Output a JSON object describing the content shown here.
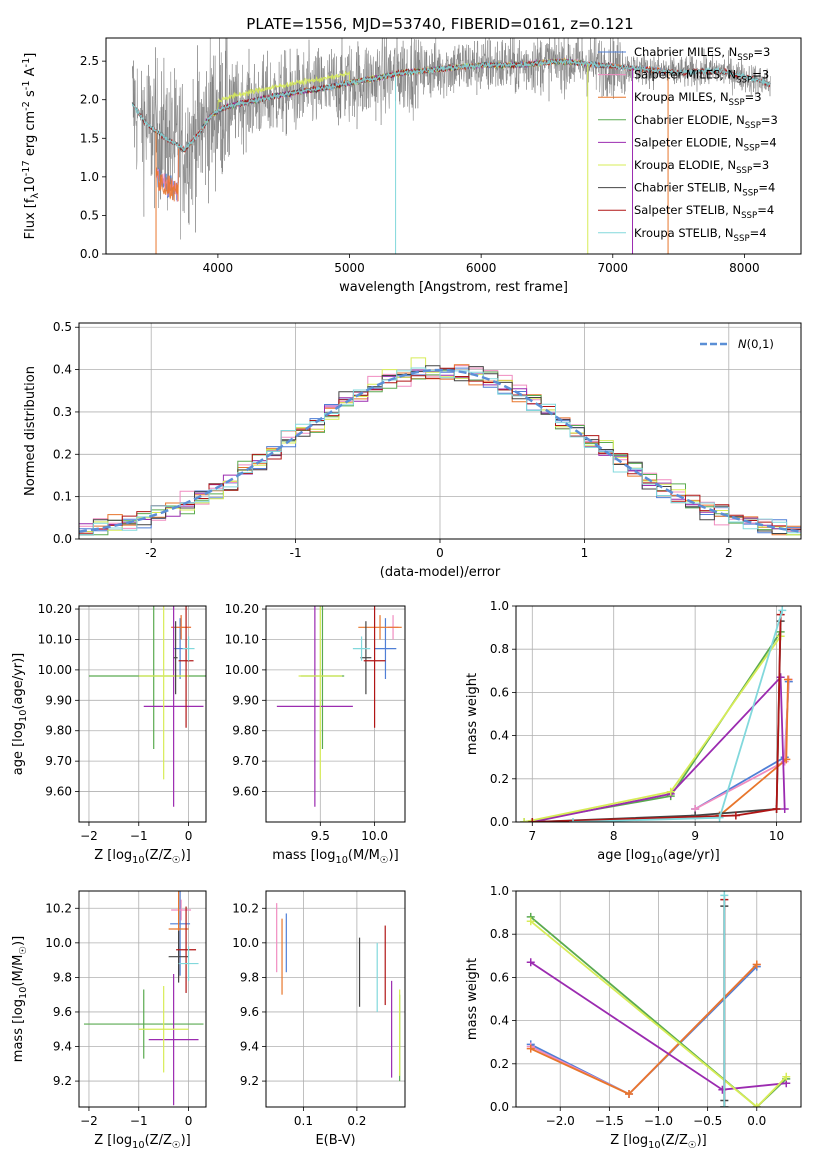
{
  "figure": {
    "title": "PLATE=1556, MJD=53740, FIBERID=0161, z=0.121"
  },
  "colors": {
    "chabrier_miles": "#4f7fd6",
    "salpeter_miles": "#f08cc0",
    "kroupa_miles": "#e8762c",
    "chabrier_elodie": "#5aaa50",
    "salpeter_elodie": "#9b2bb0",
    "kroupa_elodie": "#d7ec57",
    "chabrier_stelib": "#444444",
    "salpeter_stelib": "#b01515",
    "kroupa_stelib": "#82d8dc",
    "data_grey": "#808080",
    "normal_dashed": "#5b8fd6"
  },
  "chart_data": [
    {
      "id": "spectrum",
      "type": "line",
      "xlabel": "wavelength [Angstrom, rest frame]",
      "ylabel": "Flux [f$_\\lambda$10$^{-17}$ erg cm$^{-2}$ s$^{-1}$ A$^{-1}$]",
      "xlim": [
        3150,
        8430
      ],
      "ylim": [
        0,
        2.8
      ],
      "xticks": [
        4000,
        5000,
        6000,
        7000,
        8000
      ],
      "yticks": [
        0.0,
        0.5,
        1.0,
        1.5,
        2.0,
        2.5
      ],
      "grid": false,
      "legend_position": "top-right",
      "legend": [
        {
          "key": "chabrier_miles",
          "label": "Chabrier MILES, N$_{SSP}$=3"
        },
        {
          "key": "salpeter_miles",
          "label": "Salpeter MILES, N$_{SSP}$=3"
        },
        {
          "key": "kroupa_miles",
          "label": "Kroupa MILES, N$_{SSP}$=3"
        },
        {
          "key": "chabrier_elodie",
          "label": "Chabrier ELODIE, N$_{SSP}$=3"
        },
        {
          "key": "salpeter_elodie",
          "label": "Salpeter ELODIE, N$_{SSP}$=4"
        },
        {
          "key": "kroupa_elodie",
          "label": "Kroupa ELODIE, N$_{SSP}$=3"
        },
        {
          "key": "chabrier_stelib",
          "label": "Chabrier STELIB, N$_{SSP}$=4"
        },
        {
          "key": "salpeter_stelib",
          "label": "Salpeter STELIB, N$_{SSP}$=4"
        },
        {
          "key": "kroupa_stelib",
          "label": "Kroupa STELIB, N$_{SSP}$=4"
        }
      ],
      "continuum": {
        "x": [
          3350,
          3450,
          3600,
          3750,
          3850,
          3950,
          4050,
          4300,
          4600,
          4800,
          5000,
          5200,
          5400,
          5700,
          6000,
          6300,
          6600,
          6900,
          7200,
          7500,
          7800,
          8000,
          8100,
          8200
        ],
        "y": [
          1.95,
          1.7,
          1.5,
          1.35,
          1.55,
          1.8,
          1.9,
          2.0,
          2.1,
          2.15,
          2.22,
          2.28,
          2.35,
          2.4,
          2.45,
          2.45,
          2.5,
          2.45,
          2.4,
          2.35,
          2.38,
          2.3,
          2.25,
          2.2
        ]
      },
      "model_start": {
        "x": 3350,
        "y": 1.95
      },
      "model_end": {
        "x": 8200,
        "y": 2.22
      }
    },
    {
      "id": "residuals",
      "type": "histogram",
      "xlabel": "(data-model)/error",
      "ylabel": "Normed distribution",
      "xlim": [
        -2.5,
        2.5
      ],
      "ylim": [
        0,
        0.51
      ],
      "xticks": [
        -2,
        -1,
        0,
        1,
        2
      ],
      "yticks": [
        0.0,
        0.1,
        0.2,
        0.3,
        0.4,
        0.5
      ],
      "grid": true,
      "legend_position": "top-right",
      "legend": [
        {
          "key": "normal_dashed",
          "label": "$\\mathcal{N}(0,1)$"
        }
      ],
      "bin_width": 0.1
    },
    {
      "id": "age_vs_Z",
      "type": "errorbar",
      "xlabel": "Z [log$_{10}$(Z/Z$_\\odot$)]",
      "ylabel": "age  [log$_{10}$(age/yr)]",
      "xlim": [
        -2.2,
        0.35
      ],
      "ylim": [
        9.5,
        10.21
      ],
      "xticks": [
        -2,
        -1,
        0
      ],
      "yticks": [
        9.6,
        9.7,
        9.8,
        9.9,
        10.0,
        10.1,
        10.2
      ],
      "grid": true,
      "points": [
        {
          "key": "chabrier_miles",
          "x": -0.17,
          "xerr": 0.12,
          "y": 10.07,
          "yerr": 0.1
        },
        {
          "key": "salpeter_miles",
          "x": -0.15,
          "xerr": 0.2,
          "y": 10.14,
          "yerr": 0.04
        },
        {
          "key": "kroupa_miles",
          "x": -0.15,
          "xerr": 0.2,
          "y": 10.14,
          "yerr": 0.04
        },
        {
          "key": "chabrier_elodie",
          "x": -0.7,
          "xerr": 1.3,
          "y": 9.98,
          "yerr": 0.24
        },
        {
          "key": "salpeter_elodie",
          "x": -0.3,
          "xerr": 0.6,
          "y": 9.88,
          "yerr": 0.33
        },
        {
          "key": "kroupa_elodie",
          "x": -0.5,
          "xerr": 0.5,
          "y": 9.98,
          "yerr": 0.34
        },
        {
          "key": "chabrier_stelib",
          "x": -0.26,
          "xerr": 0.04,
          "y": 10.04,
          "yerr": 0.12
        },
        {
          "key": "salpeter_stelib",
          "x": -0.05,
          "xerr": 0.15,
          "y": 10.03,
          "yerr": 0.22
        },
        {
          "key": "kroupa_stelib",
          "x": 0.0,
          "xerr": 0.12,
          "y": 10.07,
          "yerr": 0.04
        }
      ]
    },
    {
      "id": "age_vs_mass",
      "type": "errorbar",
      "xlabel": "mass [log$_{10}$(M/M$_\\odot$)]",
      "ylabel": "",
      "xlim": [
        9.0,
        10.28
      ],
      "ylim": [
        9.5,
        10.21
      ],
      "xticks": [
        9.5,
        10.0
      ],
      "yticks": [
        9.6,
        9.7,
        9.8,
        9.9,
        10.0,
        10.1,
        10.2
      ],
      "grid": true,
      "points": [
        {
          "key": "chabrier_miles",
          "x": 10.1,
          "xerr": 0.1,
          "y": 10.07,
          "yerr": 0.1
        },
        {
          "key": "salpeter_miles",
          "x": 10.17,
          "xerr": 0.05,
          "y": 10.14,
          "yerr": 0.04
        },
        {
          "key": "kroupa_miles",
          "x": 10.05,
          "xerr": 0.2,
          "y": 10.14,
          "yerr": 0.04
        },
        {
          "key": "chabrier_elodie",
          "x": 9.52,
          "xerr": 0.2,
          "y": 9.98,
          "yerr": 0.24
        },
        {
          "key": "salpeter_elodie",
          "x": 9.45,
          "xerr": 0.35,
          "y": 9.88,
          "yerr": 0.33
        },
        {
          "key": "kroupa_elodie",
          "x": 9.5,
          "xerr": 0.2,
          "y": 9.98,
          "yerr": 0.34
        },
        {
          "key": "chabrier_stelib",
          "x": 9.92,
          "xerr": 0.05,
          "y": 10.04,
          "yerr": 0.12
        },
        {
          "key": "salpeter_stelib",
          "x": 10.0,
          "xerr": 0.1,
          "y": 10.03,
          "yerr": 0.22
        },
        {
          "key": "kroupa_stelib",
          "x": 9.88,
          "xerr": 0.08,
          "y": 10.07,
          "yerr": 0.04
        }
      ]
    },
    {
      "id": "weight_vs_age",
      "type": "line",
      "xlabel": "age  [log$_{10}$(age/yr)]",
      "ylabel": "mass weight",
      "xlim": [
        6.8,
        10.3
      ],
      "ylim": [
        0,
        1.0
      ],
      "xticks": [
        7,
        8,
        9,
        10
      ],
      "yticks": [
        0.0,
        0.2,
        0.4,
        0.6,
        0.8,
        1.0
      ],
      "grid": true,
      "series": [
        {
          "key": "chabrier_miles",
          "x": [
            9.0,
            10.1,
            10.15
          ],
          "y": [
            0.06,
            0.3,
            0.65
          ]
        },
        {
          "key": "salpeter_miles",
          "x": [
            9.0,
            10.1,
            10.15
          ],
          "y": [
            0.06,
            0.28,
            0.66
          ]
        },
        {
          "key": "kroupa_miles",
          "x": [
            9.3,
            10.12,
            10.14
          ],
          "y": [
            0.03,
            0.29,
            0.66
          ]
        },
        {
          "key": "chabrier_elodie",
          "x": [
            6.9,
            8.7,
            10.05
          ],
          "y": [
            0.0,
            0.12,
            0.88
          ]
        },
        {
          "key": "salpeter_elodie",
          "x": [
            7.0,
            8.7,
            10.05,
            10.1
          ],
          "y": [
            0.0,
            0.13,
            0.67,
            0.06
          ]
        },
        {
          "key": "kroupa_elodie",
          "x": [
            6.9,
            8.7,
            10.05
          ],
          "y": [
            0.0,
            0.14,
            0.86
          ]
        },
        {
          "key": "chabrier_stelib",
          "x": [
            7.0,
            9.0,
            10.0,
            10.05
          ],
          "y": [
            0.0,
            0.03,
            0.06,
            0.93
          ]
        },
        {
          "key": "salpeter_stelib",
          "x": [
            7.0,
            9.5,
            10.0,
            10.05
          ],
          "y": [
            0.0,
            0.03,
            0.06,
            0.96
          ]
        },
        {
          "key": "kroupa_stelib",
          "x": [
            7.5,
            9.3,
            10.07
          ],
          "y": [
            0.0,
            0.02,
            0.98
          ]
        }
      ]
    },
    {
      "id": "mass_vs_Z",
      "type": "errorbar",
      "xlabel": "Z [log$_{10}$(Z/Z$_\\odot$)]",
      "ylabel": "mass [log$_{10}$(M/M$_\\odot$)]",
      "xlim": [
        -2.2,
        0.35
      ],
      "ylim": [
        9.05,
        10.3
      ],
      "xticks": [
        -2,
        -1,
        0
      ],
      "yticks": [
        9.2,
        9.4,
        9.6,
        9.8,
        10.0,
        10.2
      ],
      "grid": true,
      "points": [
        {
          "key": "chabrier_miles",
          "x": -0.17,
          "xerr": 0.2,
          "y": 10.11,
          "yerr": 0.3
        },
        {
          "key": "salpeter_miles",
          "x": -0.15,
          "xerr": 0.2,
          "y": 10.19,
          "yerr": 0.06
        },
        {
          "key": "kroupa_miles",
          "x": -0.2,
          "xerr": 0.2,
          "y": 10.08,
          "yerr": 0.28
        },
        {
          "key": "chabrier_elodie",
          "x": -0.9,
          "xerr": 1.2,
          "y": 9.53,
          "yerr": 0.2
        },
        {
          "key": "salpeter_elodie",
          "x": -0.3,
          "xerr": 0.5,
          "y": 9.44,
          "yerr": 0.38
        },
        {
          "key": "kroupa_elodie",
          "x": -0.5,
          "xerr": 0.5,
          "y": 9.5,
          "yerr": 0.25
        },
        {
          "key": "chabrier_stelib",
          "x": -0.2,
          "xerr": 0.2,
          "y": 9.92,
          "yerr": 0.15
        },
        {
          "key": "salpeter_stelib",
          "x": -0.05,
          "xerr": 0.2,
          "y": 9.96,
          "yerr": 0.25
        },
        {
          "key": "kroupa_stelib",
          "x": 0.0,
          "xerr": 0.2,
          "y": 9.88,
          "yerr": 0.1
        }
      ]
    },
    {
      "id": "mass_vs_ebv",
      "type": "errorbar",
      "xlabel": "E(B-V)",
      "ylabel": "",
      "xlim": [
        0.03,
        0.29
      ],
      "ylim": [
        9.05,
        10.3
      ],
      "xticks": [
        0.1,
        0.2
      ],
      "yticks": [
        9.2,
        9.4,
        9.6,
        9.8,
        10.0,
        10.2
      ],
      "grid": true,
      "points": [
        {
          "key": "chabrier_miles",
          "x": 0.068,
          "xerr": 0,
          "y": 10.0,
          "yerr": 0.17
        },
        {
          "key": "salpeter_miles",
          "x": 0.05,
          "xerr": 0,
          "y": 10.03,
          "yerr": 0.2
        },
        {
          "key": "kroupa_miles",
          "x": 0.06,
          "xerr": 0,
          "y": 9.92,
          "yerr": 0.22
        },
        {
          "key": "chabrier_elodie",
          "x": 0.28,
          "xerr": 0,
          "y": 9.45,
          "yerr": 0.25
        },
        {
          "key": "salpeter_elodie",
          "x": 0.265,
          "xerr": 0,
          "y": 9.5,
          "yerr": 0.28
        },
        {
          "key": "kroupa_elodie",
          "x": 0.28,
          "xerr": 0,
          "y": 9.48,
          "yerr": 0.25
        },
        {
          "key": "chabrier_stelib",
          "x": 0.205,
          "xerr": 0,
          "y": 9.83,
          "yerr": 0.2
        },
        {
          "key": "salpeter_stelib",
          "x": 0.253,
          "xerr": 0,
          "y": 9.87,
          "yerr": 0.23
        },
        {
          "key": "kroupa_stelib",
          "x": 0.238,
          "xerr": 0,
          "y": 9.8,
          "yerr": 0.2
        }
      ]
    },
    {
      "id": "weight_vs_Z",
      "type": "line",
      "xlabel": "Z [log$_{10}$(Z/Z$_\\odot$)]",
      "ylabel": "mass weight",
      "xlim": [
        -2.45,
        0.45
      ],
      "ylim": [
        0,
        1.0
      ],
      "xticks": [
        -2.0,
        -1.5,
        -1.0,
        -0.5,
        0.0
      ],
      "yticks": [
        0.0,
        0.2,
        0.4,
        0.6,
        0.8,
        1.0
      ],
      "grid": true,
      "series": [
        {
          "key": "chabrier_miles",
          "x": [
            -2.3,
            -1.3,
            0.0
          ],
          "y": [
            0.29,
            0.06,
            0.65
          ]
        },
        {
          "key": "salpeter_miles",
          "x": [
            -2.3,
            -1.3,
            0.0
          ],
          "y": [
            0.28,
            0.06,
            0.66
          ]
        },
        {
          "key": "kroupa_miles",
          "x": [
            -2.3,
            -1.3,
            0.0
          ],
          "y": [
            0.27,
            0.06,
            0.66
          ]
        },
        {
          "key": "chabrier_elodie",
          "x": [
            -2.3,
            0.0,
            0.3
          ],
          "y": [
            0.88,
            0.0,
            0.13
          ]
        },
        {
          "key": "salpeter_elodie",
          "x": [
            -2.3,
            -0.35,
            0.3
          ],
          "y": [
            0.67,
            0.08,
            0.11
          ]
        },
        {
          "key": "kroupa_elodie",
          "x": [
            -2.3,
            0.0,
            0.3
          ],
          "y": [
            0.86,
            0.0,
            0.14
          ]
        },
        {
          "key": "chabrier_stelib",
          "x": [
            -0.33,
            -0.33,
            -0.33
          ],
          "y": [
            0.0,
            0.03,
            0.93
          ]
        },
        {
          "key": "salpeter_stelib",
          "x": [
            -0.33,
            -0.33
          ],
          "y": [
            0.0,
            0.96
          ]
        },
        {
          "key": "kroupa_stelib",
          "x": [
            -0.33,
            -0.33
          ],
          "y": [
            0.0,
            0.98
          ]
        }
      ]
    }
  ]
}
